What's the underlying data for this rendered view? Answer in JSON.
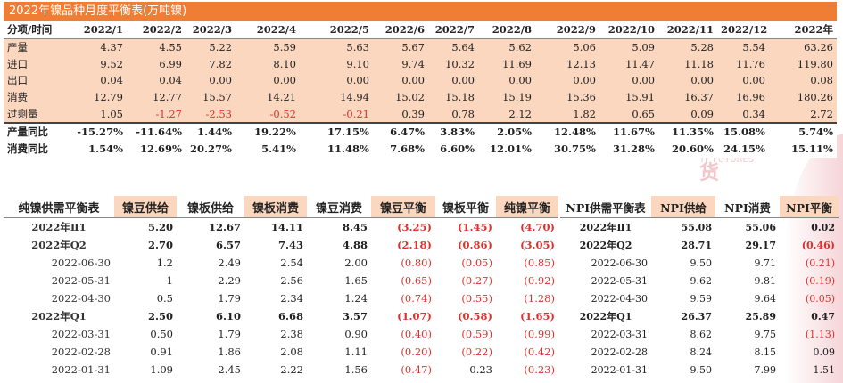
{
  "watermark": {
    "text": "天风期货",
    "sub": "TF FUTURES"
  },
  "top_table": {
    "title": "2022年镍品种月度平衡表(万吨镍)",
    "headers": [
      "分项/时间",
      "2022/1",
      "2022/2",
      "2022/3",
      "2022/4",
      "2022/5",
      "2022/6",
      "2022/7",
      "2022/8",
      "2022/9",
      "2022/10",
      "2022/11",
      "2022/12",
      "2022年"
    ],
    "rows": [
      {
        "label": "产量",
        "values": [
          "4.37",
          "4.55",
          "5.22",
          "5.59",
          "5.63",
          "5.67",
          "5.64",
          "5.62",
          "5.06",
          "5.09",
          "5.28",
          "5.54",
          "63.26"
        ]
      },
      {
        "label": "进口",
        "values": [
          "9.52",
          "6.99",
          "7.82",
          "8.10",
          "9.10",
          "9.74",
          "10.32",
          "11.69",
          "12.13",
          "11.47",
          "11.18",
          "11.76",
          "119.80"
        ]
      },
      {
        "label": "出口",
        "values": [
          "0.04",
          "0.04",
          "0.00",
          "0.00",
          "0.00",
          "0.00",
          "0.00",
          "0.00",
          "0.00",
          "0.00",
          "0.00",
          "0.00",
          "0.08"
        ]
      },
      {
        "label": "消费",
        "values": [
          "12.79",
          "12.77",
          "15.57",
          "14.21",
          "14.94",
          "15.02",
          "15.18",
          "15.19",
          "15.36",
          "15.91",
          "16.37",
          "16.96",
          "180.26"
        ]
      },
      {
        "label": "过剩量",
        "values": [
          "1.05",
          "-1.27",
          "-2.53",
          "-0.52",
          "-0.21",
          "0.39",
          "0.78",
          "2.12",
          "1.82",
          "0.65",
          "0.09",
          "0.34",
          "2.72"
        ]
      }
    ],
    "pct_rows": [
      {
        "label": "产量同比",
        "values": [
          "-15.27%",
          "-11.64%",
          "1.44%",
          "19.22%",
          "17.15%",
          "6.47%",
          "3.83%",
          "2.05%",
          "12.48%",
          "11.67%",
          "11.35%",
          "15.08%",
          "5.74%"
        ]
      },
      {
        "label": "消费同比",
        "values": [
          "1.54%",
          "12.69%",
          "20.27%",
          "5.41%",
          "11.48%",
          "7.68%",
          "6.60%",
          "12.01%",
          "30.75%",
          "31.28%",
          "20.60%",
          "24.15%",
          "15.11%"
        ]
      }
    ]
  },
  "bottom_left": {
    "headers": [
      "纯镍供需平衡表",
      "镍豆供给",
      "镍板供给",
      "镍板消费",
      "镍豆消费",
      "镍豆平衡",
      "镍板平衡",
      "纯镍平衡"
    ],
    "rows": [
      {
        "q": true,
        "label": "2022年Ⅱ1",
        "values": [
          "5.20",
          "12.67",
          "14.11",
          "8.45",
          "(3.25)",
          "(1.45)",
          "(4.70)"
        ]
      },
      {
        "q": true,
        "label": "2022年Q2",
        "values": [
          "2.70",
          "6.57",
          "7.43",
          "4.88",
          "(2.18)",
          "(0.86)",
          "(3.05)"
        ]
      },
      {
        "q": false,
        "label": "2022-06-30",
        "values": [
          "1.2",
          "2.49",
          "2.54",
          "2.00",
          "(0.80)",
          "(0.05)",
          "(0.85)"
        ]
      },
      {
        "q": false,
        "label": "2022-05-31",
        "values": [
          "1",
          "2.29",
          "2.56",
          "1.65",
          "(0.65)",
          "(0.27)",
          "(0.92)"
        ]
      },
      {
        "q": false,
        "label": "2022-04-30",
        "values": [
          "0.5",
          "1.79",
          "2.34",
          "1.24",
          "(0.74)",
          "(0.55)",
          "(1.28)"
        ]
      },
      {
        "q": true,
        "label": "2022年Q1",
        "values": [
          "2.50",
          "6.10",
          "6.68",
          "3.57",
          "(1.07)",
          "(0.58)",
          "(1.65)"
        ]
      },
      {
        "q": false,
        "label": "2022-03-31",
        "values": [
          "0.50",
          "1.79",
          "2.38",
          "0.90",
          "(0.40)",
          "(0.59)",
          "(0.99)"
        ]
      },
      {
        "q": false,
        "label": "2022-02-28",
        "values": [
          "0.91",
          "1.86",
          "2.08",
          "1.11",
          "(0.20)",
          "(0.22)",
          "(0.42)"
        ]
      },
      {
        "q": false,
        "label": "2022-01-31",
        "values": [
          "1.09",
          "2.45",
          "2.22",
          "1.56",
          "(0.47)",
          "0.23",
          "(0.23)"
        ]
      }
    ]
  },
  "bottom_right": {
    "headers": [
      "NPI供需平衡表",
      "NPI供给",
      "NPI消费",
      "NPI平衡"
    ],
    "rows": [
      {
        "q": true,
        "label": "2022年Ⅱ1",
        "values": [
          "55.08",
          "55.06",
          "0.02"
        ]
      },
      {
        "q": true,
        "label": "2022年Q2",
        "values": [
          "28.71",
          "29.17",
          "(0.46)"
        ]
      },
      {
        "q": false,
        "label": "2022-06-30",
        "values": [
          "9.50",
          "9.71",
          "(0.21)"
        ]
      },
      {
        "q": false,
        "label": "2022-05-31",
        "values": [
          "9.62",
          "9.81",
          "(0.19)"
        ]
      },
      {
        "q": false,
        "label": "2022-04-30",
        "values": [
          "9.59",
          "9.64",
          "(0.05)"
        ]
      },
      {
        "q": true,
        "label": "2022年Q1",
        "values": [
          "26.37",
          "25.89",
          "0.47"
        ]
      },
      {
        "q": false,
        "label": "2022-03-31",
        "values": [
          "8.62",
          "9.75",
          "(1.13)"
        ]
      },
      {
        "q": false,
        "label": "2022-02-28",
        "values": [
          "8.24",
          "8.15",
          "0.09"
        ]
      },
      {
        "q": false,
        "label": "2022-01-31",
        "values": [
          "9.50",
          "7.99",
          "1.51"
        ]
      }
    ]
  }
}
